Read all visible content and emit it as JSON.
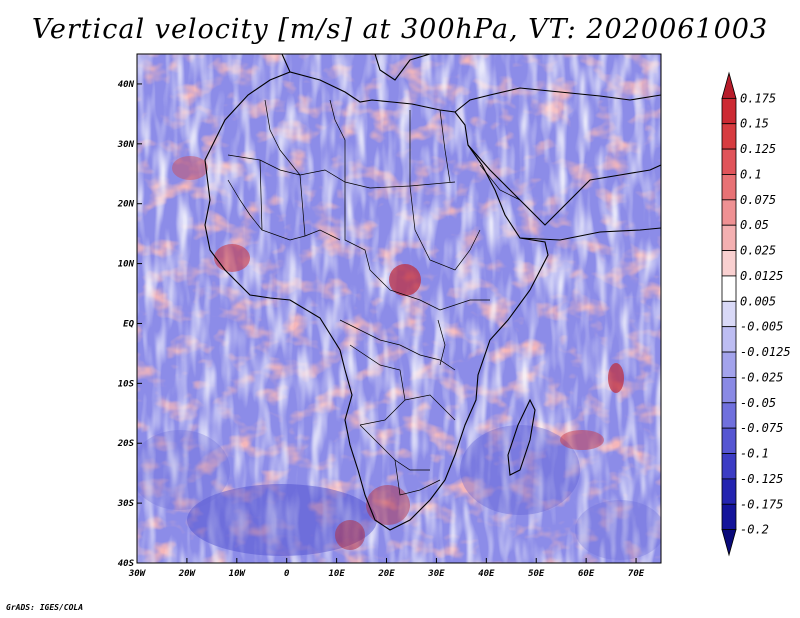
{
  "title": "Vertical velocity [m/s] at 300hPa, VT: 2020061003",
  "credit": "GrADS: IGES/COLA",
  "map": {
    "lon_range": [
      -30,
      75
    ],
    "lat_range": [
      -40,
      45
    ],
    "lat_labels": [
      "40N",
      "30N",
      "20N",
      "10N",
      "EQ",
      "10S",
      "20S",
      "30S",
      "40S"
    ],
    "lat_values": [
      40,
      30,
      20,
      10,
      0,
      -10,
      -20,
      -30,
      -40
    ],
    "lon_labels": [
      "30W",
      "20W",
      "10W",
      "0",
      "10E",
      "20E",
      "30E",
      "40E",
      "50E",
      "60E",
      "70E"
    ],
    "lon_values": [
      -30,
      -20,
      -10,
      0,
      10,
      20,
      30,
      40,
      50,
      60,
      70
    ]
  },
  "colorbar": {
    "labels": [
      "0.175",
      "0.15",
      "0.125",
      "0.1",
      "0.075",
      "0.05",
      "0.025",
      "0.0125",
      "0.005",
      "-0.005",
      "-0.0125",
      "-0.025",
      "-0.05",
      "-0.075",
      "-0.1",
      "-0.125",
      "-0.175",
      "-0.2"
    ],
    "colors": [
      "#b71c2a",
      "#cc2a33",
      "#d73c40",
      "#e0545a",
      "#e87275",
      "#ef9193",
      "#f4b0b1",
      "#f9d0d0",
      "#ffffff",
      "#d9d9f7",
      "#bdbdf2",
      "#a3a3ec",
      "#8a8ae5",
      "#7070dd",
      "#5656d2",
      "#3c3cc4",
      "#2424b0",
      "#14149a",
      "#0a0a7a"
    ]
  },
  "colors": {
    "field_positive": "#e8787c",
    "field_negative": "#8c8ce8",
    "background": "#ffffff"
  }
}
